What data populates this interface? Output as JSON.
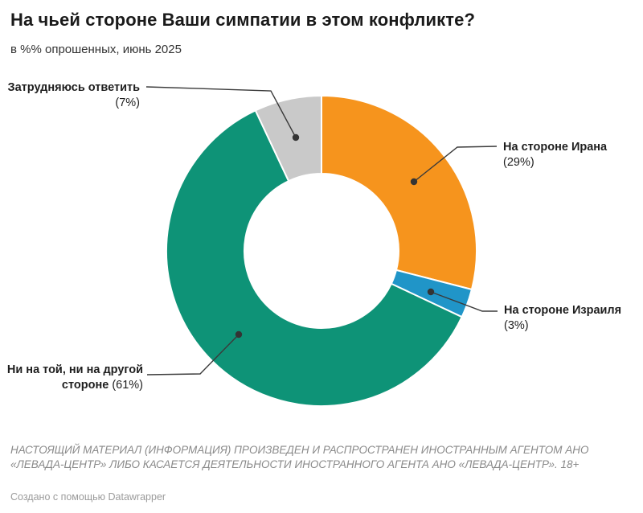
{
  "header": {
    "title": "На чьей стороне Ваши симпатии в этом конфликте?",
    "subtitle": "в %% опрошенных, июнь 2025"
  },
  "chart_data": {
    "type": "pie",
    "subtype": "donut",
    "title": "На чьей стороне Ваши симпатии в этом конфликте?",
    "subtitle": "в %% опрошенных, июнь 2025",
    "unit": "%",
    "start_angle": "12 o'clock, clockwise",
    "inner_radius_ratio": 0.5,
    "slices": [
      {
        "id": "iran",
        "category": "На стороне Ирана",
        "value": 29,
        "value_label": "(29%)",
        "color": "#F6941D"
      },
      {
        "id": "israel",
        "category": "На стороне Израиля",
        "value": 3,
        "value_label": "(3%)",
        "color": "#2095C8"
      },
      {
        "id": "neither",
        "category": "Ни на той, ни на другой стороне",
        "value": 61,
        "value_label": "(61%)",
        "color": "#0E9377"
      },
      {
        "id": "undecided",
        "category": "Затрудняюсь ответить",
        "value": 7,
        "value_label": "(7%)",
        "color": "#C9C9C9"
      }
    ]
  },
  "footer": {
    "disclaimer": "НАСТОЯЩИЙ МАТЕРИАЛ (ИНФОРМАЦИЯ) ПРОИЗВЕДЕН И РАСПРОСТРАНЕН ИНОСТРАННЫМ АГЕНТОМ АНО «ЛЕВАДА-ЦЕНТР» ЛИБО КАСАЕТСЯ ДЕЯТЕЛЬНОСТИ ИНОСТРАННОГО АГЕНТА АНО «ЛЕВАДА-ЦЕНТР». 18+",
    "credit": "Создано с помощью Datawrapper"
  },
  "leader_line_color": "#3a3a3a"
}
